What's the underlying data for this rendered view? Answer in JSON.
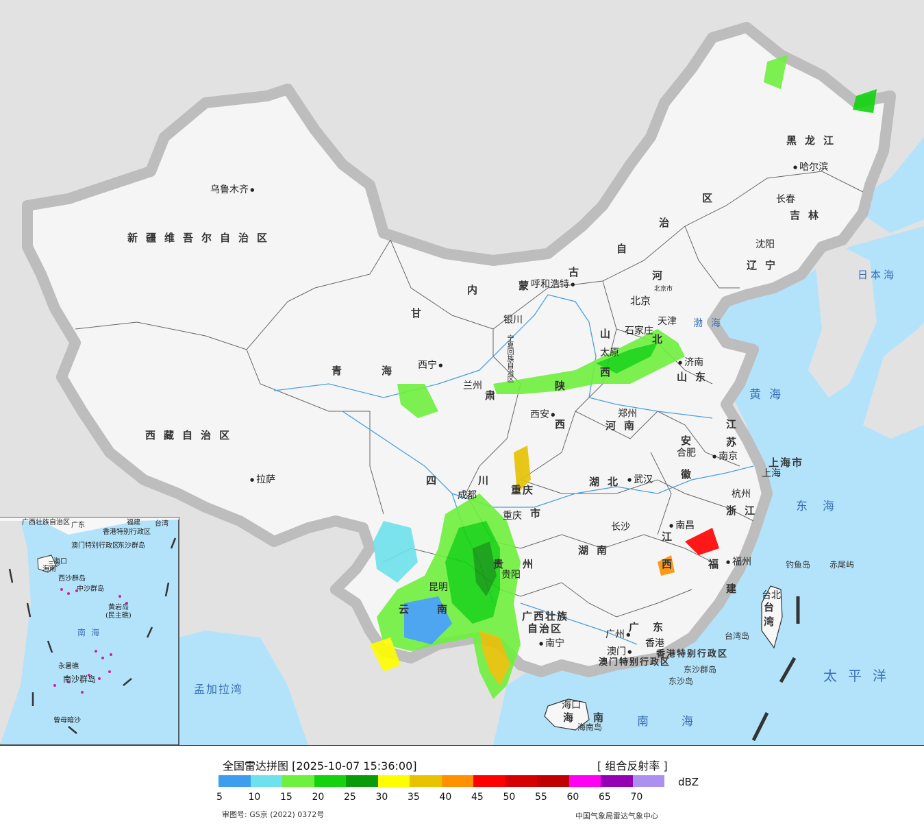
{
  "map": {
    "provinces": [
      {
        "id": "xinjiang",
        "label": "新疆维吾尔自治区"
      },
      {
        "id": "xizang",
        "label": "西藏自治区"
      },
      {
        "id": "qinghai-q",
        "label": "青"
      },
      {
        "id": "qinghai-h",
        "label": "海"
      },
      {
        "id": "gansu-g",
        "label": "甘"
      },
      {
        "id": "gansu-s",
        "label": "肃"
      },
      {
        "id": "neimenggu-nei",
        "label": "内"
      },
      {
        "id": "neimenggu-meng",
        "label": "蒙"
      },
      {
        "id": "neimenggu-gu",
        "label": "古"
      },
      {
        "id": "neimenggu-zi",
        "label": "自"
      },
      {
        "id": "neimenggu-zhi",
        "label": "治"
      },
      {
        "id": "neimenggu-qu",
        "label": "区"
      },
      {
        "id": "heilongjiang",
        "label": "黑龙江"
      },
      {
        "id": "jilin",
        "label": "吉林"
      },
      {
        "id": "liaoning",
        "label": "辽宁"
      },
      {
        "id": "hebei-he",
        "label": "河"
      },
      {
        "id": "hebei-bei",
        "label": "北"
      },
      {
        "id": "shanxi-shan",
        "label": "山"
      },
      {
        "id": "shanxi-xi",
        "label": "西"
      },
      {
        "id": "shandong",
        "label": "山东"
      },
      {
        "id": "shaanxi-shan",
        "label": "陕"
      },
      {
        "id": "shaanxi-xi",
        "label": "西"
      },
      {
        "id": "henan",
        "label": "河南"
      },
      {
        "id": "sichuan-si",
        "label": "四"
      },
      {
        "id": "sichuan-chuan",
        "label": "川"
      },
      {
        "id": "hubei",
        "label": "湖北"
      },
      {
        "id": "anhui-an",
        "label": "安"
      },
      {
        "id": "anhui-hui",
        "label": "徽"
      },
      {
        "id": "jiangsu-jiang",
        "label": "江"
      },
      {
        "id": "jiangsu-su",
        "label": "苏"
      },
      {
        "id": "zhejiang",
        "label": "浙江"
      },
      {
        "id": "jiangxi-jiang",
        "label": "江"
      },
      {
        "id": "jiangxi-xi",
        "label": "西"
      },
      {
        "id": "hunan",
        "label": "湖南"
      },
      {
        "id": "guizhou-gui",
        "label": "贵"
      },
      {
        "id": "guizhou-zhou",
        "label": "州"
      },
      {
        "id": "yunnan-yun",
        "label": "云"
      },
      {
        "id": "yunnan-nan",
        "label": "南"
      },
      {
        "id": "guangxi-1",
        "label": "广西壮族"
      },
      {
        "id": "guangxi-2",
        "label": "自治区"
      },
      {
        "id": "guangdong",
        "label": "广东"
      },
      {
        "id": "fujian-fu",
        "label": "福"
      },
      {
        "id": "fujian-jian",
        "label": "建"
      },
      {
        "id": "taiwan",
        "label": "台湾"
      },
      {
        "id": "hainan-hai",
        "label": "海"
      },
      {
        "id": "hainan-nan",
        "label": "南"
      },
      {
        "id": "chongqing-1",
        "label": "重庆"
      },
      {
        "id": "chongqing-2",
        "label": "市"
      },
      {
        "id": "ningxia",
        "label": "宁夏回族自治区"
      },
      {
        "id": "shanghai-city",
        "label": "上海市"
      },
      {
        "id": "hongkong-sar",
        "label": "香港特别行政区"
      },
      {
        "id": "macao-sar",
        "label": "澳门特别行政区"
      }
    ],
    "cities": [
      {
        "id": "wulumuqi",
        "label": "乌鲁木齐"
      },
      {
        "id": "lasa",
        "label": "拉萨"
      },
      {
        "id": "xining",
        "label": "西宁"
      },
      {
        "id": "lanzhou",
        "label": "兰州"
      },
      {
        "id": "yinchuan",
        "label": "银川"
      },
      {
        "id": "huhehaote",
        "label": "呼和浩特"
      },
      {
        "id": "haerbin",
        "label": "哈尔滨"
      },
      {
        "id": "changchun",
        "label": "长春"
      },
      {
        "id": "shenyang",
        "label": "沈阳"
      },
      {
        "id": "beijing",
        "label": "北京"
      },
      {
        "id": "beijingshi",
        "label": "北京市"
      },
      {
        "id": "tianjin",
        "label": "天津"
      },
      {
        "id": "shijiazhuang",
        "label": "石家庄"
      },
      {
        "id": "taiyuan",
        "label": "太原"
      },
      {
        "id": "jinan",
        "label": "济南"
      },
      {
        "id": "xian",
        "label": "西安"
      },
      {
        "id": "zhengzhou",
        "label": "郑州"
      },
      {
        "id": "hefei",
        "label": "合肥"
      },
      {
        "id": "nanjing",
        "label": "南京"
      },
      {
        "id": "shanghai",
        "label": "上海"
      },
      {
        "id": "hangzhou",
        "label": "杭州"
      },
      {
        "id": "wuhan",
        "label": "武汉"
      },
      {
        "id": "chengdu",
        "label": "成都"
      },
      {
        "id": "chongqing",
        "label": "重庆"
      },
      {
        "id": "changsha",
        "label": "长沙"
      },
      {
        "id": "nanchang",
        "label": "南昌"
      },
      {
        "id": "fuzhou",
        "label": "福州"
      },
      {
        "id": "guiyang",
        "label": "贵阳"
      },
      {
        "id": "kunming",
        "label": "昆明"
      },
      {
        "id": "nanning",
        "label": "南宁"
      },
      {
        "id": "guangzhou",
        "label": "广州"
      },
      {
        "id": "xianggang",
        "label": "香港"
      },
      {
        "id": "aomen",
        "label": "澳门"
      },
      {
        "id": "taibei",
        "label": "台北"
      },
      {
        "id": "haikou",
        "label": "海口"
      }
    ],
    "seas": [
      {
        "id": "bohai",
        "label": "渤海"
      },
      {
        "id": "huanghai",
        "label": "黄海"
      },
      {
        "id": "donghai",
        "label": "东海"
      },
      {
        "id": "nanhai",
        "label": "南海"
      },
      {
        "id": "taipingyang",
        "label": "太平洋"
      },
      {
        "id": "ribenhai",
        "label": "日本海"
      },
      {
        "id": "mengjialawan",
        "label": "孟加拉湾"
      }
    ],
    "islands": [
      {
        "id": "diaoyudao",
        "label": "钓鱼岛"
      },
      {
        "id": "chiweiyu",
        "label": "赤尾屿"
      },
      {
        "id": "taiwandao",
        "label": "台湾岛"
      },
      {
        "id": "dongshaqundao",
        "label": "东沙群岛"
      },
      {
        "id": "dongshadao",
        "label": "东沙岛"
      },
      {
        "id": "hainandao",
        "label": "海南岛"
      }
    ],
    "inset": [
      {
        "id": "inset-guangxi",
        "label": "广西壮族自治区"
      },
      {
        "id": "inset-guangdong",
        "label": "广东"
      },
      {
        "id": "inset-fujian",
        "label": "福建"
      },
      {
        "id": "inset-taiwan",
        "label": "台湾"
      },
      {
        "id": "inset-hk",
        "label": "香港特别行政区"
      },
      {
        "id": "inset-macao",
        "label": "澳门特别行政区"
      },
      {
        "id": "inset-dongsha",
        "label": "东沙群岛"
      },
      {
        "id": "inset-haikou",
        "label": "海口"
      },
      {
        "id": "inset-hainan",
        "label": "海南"
      },
      {
        "id": "inset-xisha",
        "label": "西沙群岛"
      },
      {
        "id": "inset-zhongsha",
        "label": "中沙群岛"
      },
      {
        "id": "inset-huangyan",
        "label": "黄岩岛"
      },
      {
        "id": "inset-minzhujiao",
        "label": "(民主礁)"
      },
      {
        "id": "inset-nanhai",
        "label": "南海"
      },
      {
        "id": "inset-yongshu",
        "label": "永暑礁"
      },
      {
        "id": "inset-nansha",
        "label": "南沙群岛"
      },
      {
        "id": "inset-zengmu",
        "label": "曾母暗沙"
      },
      {
        "id": "inset-sansha",
        "label": "三沙"
      }
    ]
  },
  "legend": {
    "title": "全国雷达拼图 [2025-10-07 15:36:00]",
    "product": "[ 组合反射率 ]",
    "unit": "dBZ",
    "colors": [
      "#3d9ef0",
      "#6ee2ec",
      "#6ef03e",
      "#12d30e",
      "#0a9c08",
      "#fefe00",
      "#e6c201",
      "#ff9000",
      "#ff0000",
      "#d60000",
      "#c00000",
      "#ff00f0",
      "#9600b4",
      "#ac90f0"
    ],
    "ticks": [
      "5",
      "10",
      "15",
      "20",
      "25",
      "30",
      "35",
      "40",
      "45",
      "50",
      "55",
      "60",
      "65",
      "70"
    ],
    "approval": "审图号: GS京 (2022) 0372号",
    "source": "中国气象局雷达气象中心"
  }
}
